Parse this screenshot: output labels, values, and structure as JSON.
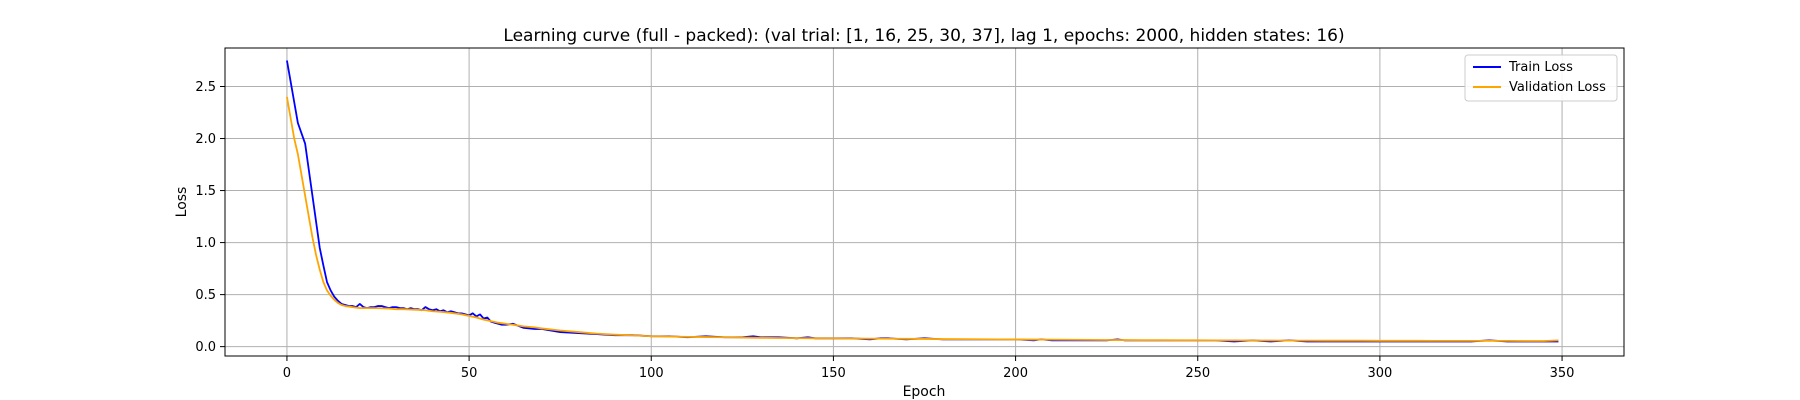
{
  "chart_data": {
    "type": "line",
    "title": "Learning curve (full - packed): (val trial: [1, 16, 25, 30, 37], lag 1, epochs: 2000, hidden states: 16)",
    "xlabel": "Epoch",
    "ylabel": "Loss",
    "xlim": [
      -17,
      367
    ],
    "ylim": [
      -0.09,
      2.87
    ],
    "xticks": [
      0,
      50,
      100,
      150,
      200,
      250,
      300,
      350
    ],
    "yticks": [
      0.0,
      0.5,
      1.0,
      1.5,
      2.0,
      2.5
    ],
    "xtick_labels": [
      "0",
      "50",
      "100",
      "150",
      "200",
      "250",
      "300",
      "350"
    ],
    "ytick_labels": [
      "0.0",
      "0.5",
      "1.0",
      "1.5",
      "2.0",
      "2.5"
    ],
    "grid": true,
    "legend_position": "top-right",
    "series": [
      {
        "name": "Train Loss",
        "color": "#0000ff",
        "points": [
          [
            0,
            2.75
          ],
          [
            1,
            2.55
          ],
          [
            2,
            2.35
          ],
          [
            3,
            2.15
          ],
          [
            4,
            2.05
          ],
          [
            5,
            1.95
          ],
          [
            6,
            1.7
          ],
          [
            7,
            1.45
          ],
          [
            8,
            1.2
          ],
          [
            9,
            0.95
          ],
          [
            10,
            0.78
          ],
          [
            11,
            0.62
          ],
          [
            12,
            0.54
          ],
          [
            13,
            0.48
          ],
          [
            14,
            0.44
          ],
          [
            15,
            0.41
          ],
          [
            16,
            0.4
          ],
          [
            17,
            0.39
          ],
          [
            18,
            0.39
          ],
          [
            19,
            0.38
          ],
          [
            20,
            0.41
          ],
          [
            21,
            0.38
          ],
          [
            22,
            0.37
          ],
          [
            23,
            0.38
          ],
          [
            24,
            0.38
          ],
          [
            25,
            0.39
          ],
          [
            26,
            0.39
          ],
          [
            27,
            0.38
          ],
          [
            28,
            0.37
          ],
          [
            29,
            0.38
          ],
          [
            30,
            0.38
          ],
          [
            31,
            0.37
          ],
          [
            32,
            0.37
          ],
          [
            33,
            0.36
          ],
          [
            34,
            0.37
          ],
          [
            35,
            0.36
          ],
          [
            36,
            0.36
          ],
          [
            37,
            0.35
          ],
          [
            38,
            0.38
          ],
          [
            39,
            0.36
          ],
          [
            40,
            0.35
          ],
          [
            41,
            0.36
          ],
          [
            42,
            0.34
          ],
          [
            43,
            0.35
          ],
          [
            44,
            0.33
          ],
          [
            45,
            0.34
          ],
          [
            46,
            0.33
          ],
          [
            47,
            0.32
          ],
          [
            48,
            0.32
          ],
          [
            49,
            0.31
          ],
          [
            50,
            0.3
          ],
          [
            51,
            0.32
          ],
          [
            52,
            0.29
          ],
          [
            53,
            0.31
          ],
          [
            54,
            0.27
          ],
          [
            55,
            0.28
          ],
          [
            56,
            0.24
          ],
          [
            57,
            0.23
          ],
          [
            58,
            0.22
          ],
          [
            59,
            0.21
          ],
          [
            60,
            0.21
          ],
          [
            62,
            0.22
          ],
          [
            65,
            0.18
          ],
          [
            68,
            0.17
          ],
          [
            70,
            0.17
          ],
          [
            75,
            0.14
          ],
          [
            80,
            0.13
          ],
          [
            85,
            0.12
          ],
          [
            90,
            0.11
          ],
          [
            95,
            0.11
          ],
          [
            100,
            0.1
          ],
          [
            105,
            0.1
          ],
          [
            110,
            0.09
          ],
          [
            115,
            0.1
          ],
          [
            120,
            0.09
          ],
          [
            125,
            0.09
          ],
          [
            128,
            0.1
          ],
          [
            130,
            0.09
          ],
          [
            135,
            0.09
          ],
          [
            140,
            0.08
          ],
          [
            143,
            0.09
          ],
          [
            145,
            0.08
          ],
          [
            150,
            0.08
          ],
          [
            155,
            0.08
          ],
          [
            160,
            0.07
          ],
          [
            163,
            0.08
          ],
          [
            165,
            0.08
          ],
          [
            170,
            0.07
          ],
          [
            175,
            0.08
          ],
          [
            180,
            0.07
          ],
          [
            185,
            0.07
          ],
          [
            190,
            0.07
          ],
          [
            195,
            0.07
          ],
          [
            200,
            0.07
          ],
          [
            205,
            0.06
          ],
          [
            207,
            0.07
          ],
          [
            210,
            0.06
          ],
          [
            215,
            0.06
          ],
          [
            220,
            0.06
          ],
          [
            225,
            0.06
          ],
          [
            228,
            0.07
          ],
          [
            230,
            0.06
          ],
          [
            235,
            0.06
          ],
          [
            240,
            0.06
          ],
          [
            245,
            0.06
          ],
          [
            250,
            0.06
          ],
          [
            255,
            0.06
          ],
          [
            260,
            0.05
          ],
          [
            265,
            0.06
          ],
          [
            270,
            0.05
          ],
          [
            275,
            0.06
          ],
          [
            280,
            0.05
          ],
          [
            285,
            0.05
          ],
          [
            290,
            0.05
          ],
          [
            295,
            0.05
          ],
          [
            300,
            0.05
          ],
          [
            305,
            0.05
          ],
          [
            310,
            0.05
          ],
          [
            315,
            0.05
          ],
          [
            320,
            0.05
          ],
          [
            325,
            0.05
          ],
          [
            330,
            0.06
          ],
          [
            335,
            0.05
          ],
          [
            340,
            0.05
          ],
          [
            345,
            0.05
          ],
          [
            349,
            0.05
          ]
        ]
      },
      {
        "name": "Validation Loss",
        "color": "#ffa500",
        "points": [
          [
            0,
            2.4
          ],
          [
            1,
            2.2
          ],
          [
            2,
            2.0
          ],
          [
            3,
            1.85
          ],
          [
            4,
            1.65
          ],
          [
            5,
            1.45
          ],
          [
            6,
            1.25
          ],
          [
            7,
            1.05
          ],
          [
            8,
            0.88
          ],
          [
            9,
            0.74
          ],
          [
            10,
            0.62
          ],
          [
            11,
            0.54
          ],
          [
            12,
            0.49
          ],
          [
            13,
            0.45
          ],
          [
            14,
            0.42
          ],
          [
            15,
            0.4
          ],
          [
            16,
            0.39
          ],
          [
            17,
            0.385
          ],
          [
            18,
            0.38
          ],
          [
            19,
            0.375
          ],
          [
            20,
            0.37
          ],
          [
            22,
            0.37
          ],
          [
            25,
            0.37
          ],
          [
            28,
            0.365
          ],
          [
            30,
            0.36
          ],
          [
            32,
            0.36
          ],
          [
            35,
            0.355
          ],
          [
            38,
            0.35
          ],
          [
            40,
            0.34
          ],
          [
            42,
            0.335
          ],
          [
            45,
            0.325
          ],
          [
            48,
            0.31
          ],
          [
            50,
            0.295
          ],
          [
            52,
            0.28
          ],
          [
            54,
            0.26
          ],
          [
            56,
            0.245
          ],
          [
            58,
            0.23
          ],
          [
            60,
            0.22
          ],
          [
            62,
            0.21
          ],
          [
            65,
            0.195
          ],
          [
            68,
            0.185
          ],
          [
            70,
            0.175
          ],
          [
            75,
            0.155
          ],
          [
            80,
            0.14
          ],
          [
            85,
            0.125
          ],
          [
            90,
            0.115
          ],
          [
            95,
            0.108
          ],
          [
            100,
            0.1
          ],
          [
            105,
            0.097
          ],
          [
            110,
            0.094
          ],
          [
            115,
            0.092
          ],
          [
            120,
            0.09
          ],
          [
            125,
            0.087
          ],
          [
            130,
            0.085
          ],
          [
            135,
            0.083
          ],
          [
            140,
            0.082
          ],
          [
            145,
            0.08
          ],
          [
            150,
            0.079
          ],
          [
            155,
            0.078
          ],
          [
            160,
            0.077
          ],
          [
            165,
            0.076
          ],
          [
            170,
            0.075
          ],
          [
            175,
            0.074
          ],
          [
            180,
            0.073
          ],
          [
            185,
            0.072
          ],
          [
            190,
            0.071
          ],
          [
            195,
            0.07
          ],
          [
            200,
            0.069
          ],
          [
            205,
            0.068
          ],
          [
            210,
            0.067
          ],
          [
            215,
            0.066
          ],
          [
            220,
            0.065
          ],
          [
            225,
            0.064
          ],
          [
            230,
            0.063
          ],
          [
            235,
            0.062
          ],
          [
            240,
            0.062
          ],
          [
            245,
            0.061
          ],
          [
            250,
            0.061
          ],
          [
            255,
            0.06
          ],
          [
            260,
            0.06
          ],
          [
            265,
            0.059
          ],
          [
            270,
            0.059
          ],
          [
            275,
            0.058
          ],
          [
            280,
            0.058
          ],
          [
            285,
            0.057
          ],
          [
            290,
            0.057
          ],
          [
            295,
            0.057
          ],
          [
            300,
            0.056
          ],
          [
            305,
            0.056
          ],
          [
            310,
            0.056
          ],
          [
            315,
            0.055
          ],
          [
            320,
            0.055
          ],
          [
            325,
            0.055
          ],
          [
            330,
            0.055
          ],
          [
            335,
            0.055
          ],
          [
            340,
            0.054
          ],
          [
            345,
            0.054
          ],
          [
            349,
            0.06
          ]
        ]
      }
    ]
  }
}
